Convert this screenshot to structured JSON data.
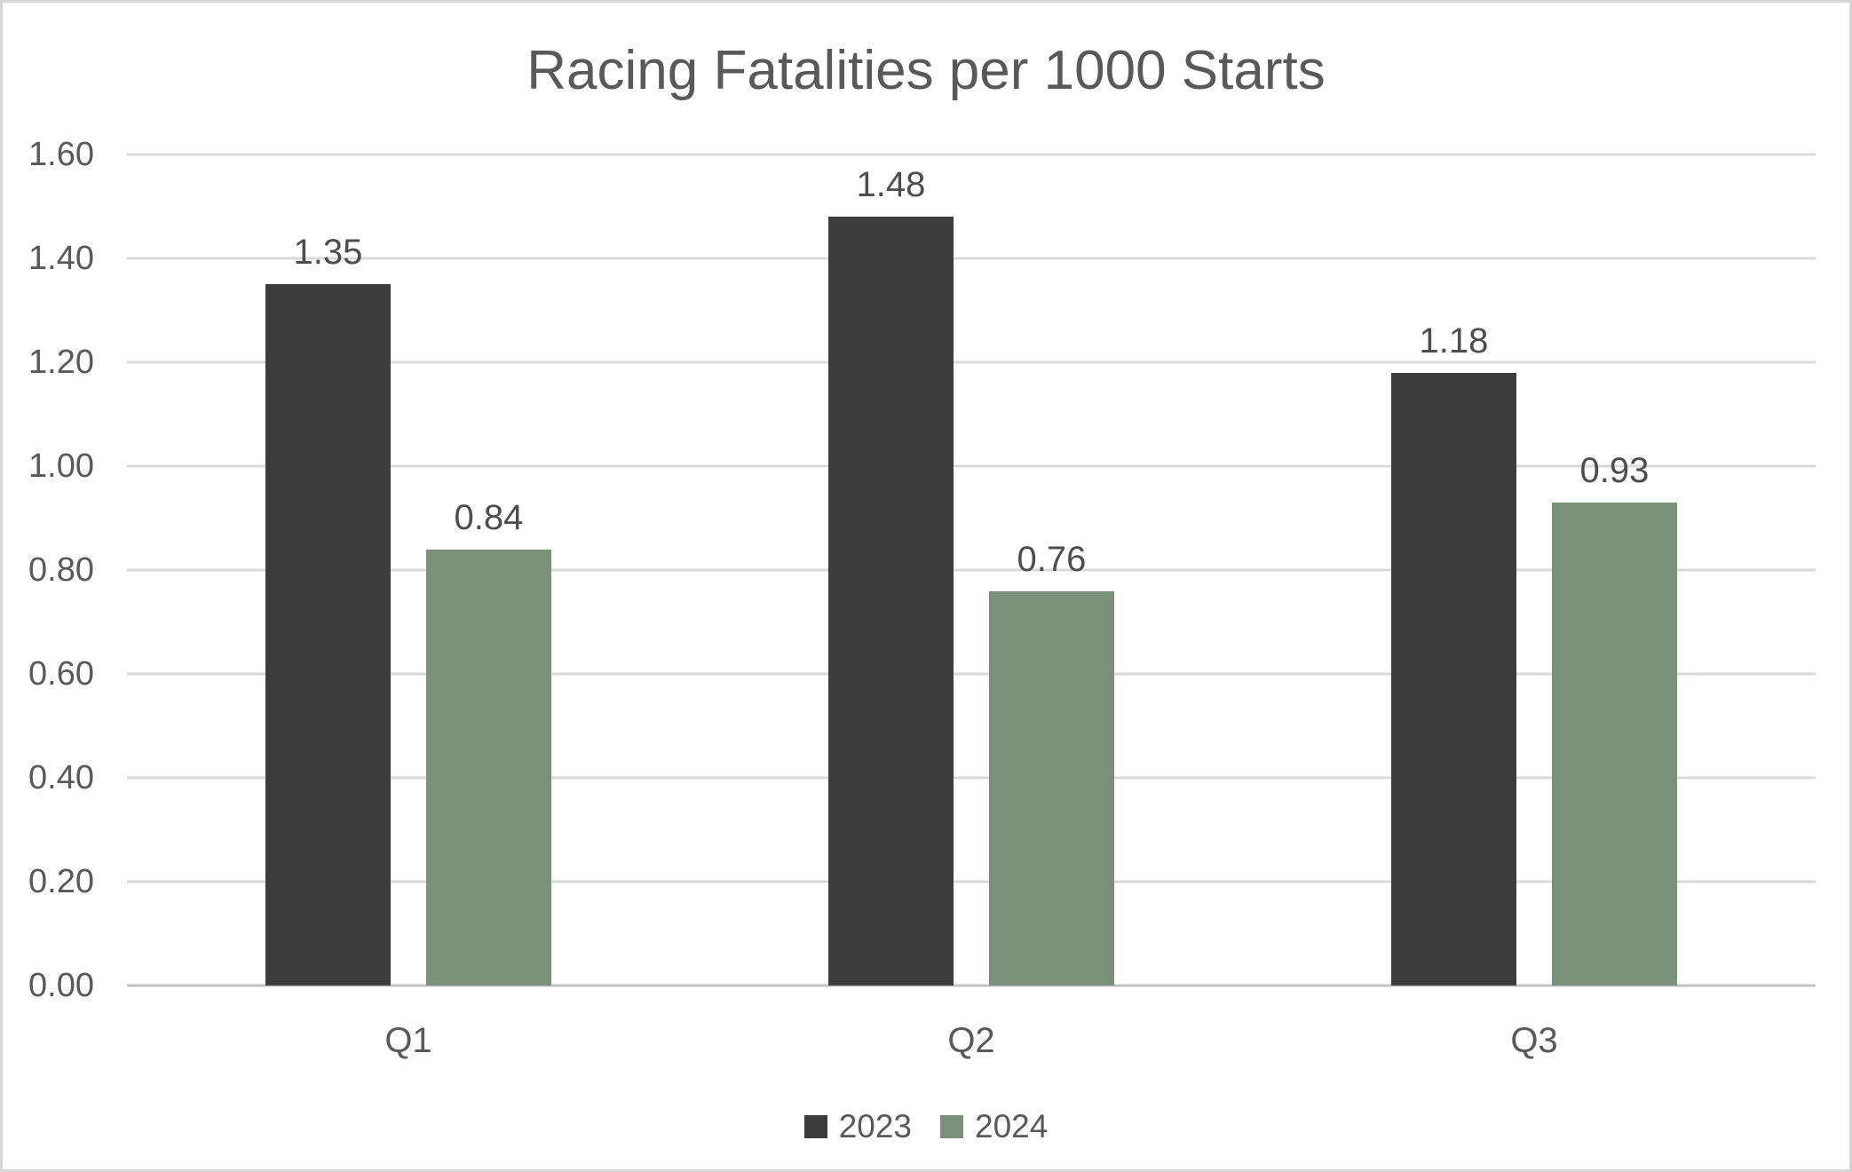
{
  "chart_data": {
    "type": "bar",
    "title": "Racing Fatalities per 1000 Starts",
    "categories": [
      "Q1",
      "Q2",
      "Q3"
    ],
    "series": [
      {
        "name": "2023",
        "color": "#3C3C3C",
        "values": [
          1.35,
          1.48,
          1.18
        ],
        "labels": [
          "1.35",
          "1.48",
          "1.18"
        ]
      },
      {
        "name": "2024",
        "color": "#7A9078",
        "values": [
          0.84,
          0.76,
          0.93
        ],
        "labels": [
          "0.84",
          "0.76",
          "0.93"
        ]
      }
    ],
    "ylim": [
      0,
      1.6
    ],
    "yticks": [
      "0.00",
      "0.20",
      "0.40",
      "0.60",
      "0.80",
      "1.00",
      "1.20",
      "1.40",
      "1.60"
    ],
    "grid": true,
    "gridline_color": "#d9d9d9",
    "axis_line_color": "#c3c3c3",
    "text_color": "#595959",
    "legend_position": "bottom"
  }
}
